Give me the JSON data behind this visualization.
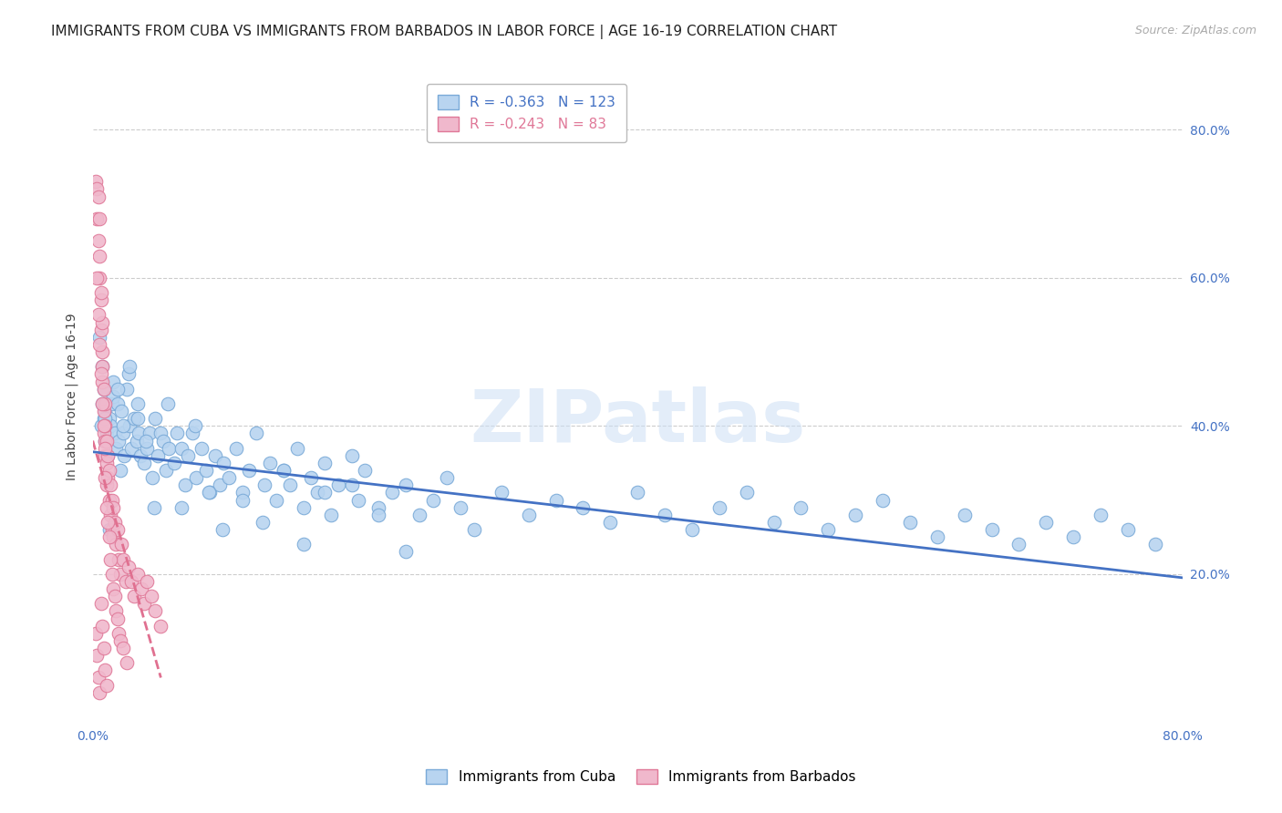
{
  "title": "IMMIGRANTS FROM CUBA VS IMMIGRANTS FROM BARBADOS IN LABOR FORCE | AGE 16-19 CORRELATION CHART",
  "source": "Source: ZipAtlas.com",
  "ylabel": "In Labor Force | Age 16-19",
  "xlim": [
    0.0,
    0.8
  ],
  "ylim": [
    0.0,
    0.88
  ],
  "xticks": [
    0.0,
    0.2,
    0.4,
    0.6,
    0.8
  ],
  "xtick_labels": [
    "0.0%",
    "",
    "",
    "",
    "80.0%"
  ],
  "yticks_right": [
    0.2,
    0.4,
    0.6,
    0.8
  ],
  "ytick_labels_right": [
    "20.0%",
    "40.0%",
    "60.0%",
    "80.0%"
  ],
  "cuba_color": "#b8d4f0",
  "cuba_edge_color": "#7aaad8",
  "barbados_color": "#f0b8cc",
  "barbados_edge_color": "#e07898",
  "cuba_R": -0.363,
  "cuba_N": 123,
  "barbados_R": -0.243,
  "barbados_N": 83,
  "regression_cuba_color": "#4472c4",
  "regression_barbados_color": "#e07090",
  "watermark": "ZIPatlas",
  "grid_color": "#cccccc",
  "background_color": "#ffffff",
  "title_fontsize": 11,
  "tick_color": "#4472c4",
  "cuba_scatter_x": [
    0.006,
    0.007,
    0.008,
    0.008,
    0.009,
    0.009,
    0.01,
    0.01,
    0.011,
    0.012,
    0.013,
    0.014,
    0.015,
    0.015,
    0.016,
    0.017,
    0.018,
    0.019,
    0.02,
    0.021,
    0.022,
    0.023,
    0.025,
    0.026,
    0.027,
    0.028,
    0.03,
    0.032,
    0.033,
    0.034,
    0.035,
    0.038,
    0.04,
    0.042,
    0.044,
    0.046,
    0.048,
    0.05,
    0.052,
    0.054,
    0.056,
    0.06,
    0.062,
    0.065,
    0.068,
    0.07,
    0.073,
    0.076,
    0.08,
    0.083,
    0.086,
    0.09,
    0.093,
    0.096,
    0.1,
    0.105,
    0.11,
    0.115,
    0.12,
    0.126,
    0.13,
    0.135,
    0.14,
    0.145,
    0.15,
    0.155,
    0.16,
    0.165,
    0.17,
    0.175,
    0.18,
    0.19,
    0.195,
    0.2,
    0.21,
    0.22,
    0.23,
    0.24,
    0.25,
    0.26,
    0.27,
    0.28,
    0.3,
    0.32,
    0.34,
    0.36,
    0.38,
    0.4,
    0.42,
    0.44,
    0.46,
    0.48,
    0.5,
    0.52,
    0.54,
    0.56,
    0.58,
    0.6,
    0.62,
    0.64,
    0.66,
    0.68,
    0.7,
    0.72,
    0.74,
    0.76,
    0.78,
    0.005,
    0.007,
    0.009,
    0.012,
    0.018,
    0.022,
    0.027,
    0.033,
    0.039,
    0.045,
    0.055,
    0.065,
    0.075,
    0.085,
    0.095,
    0.11,
    0.125,
    0.14,
    0.155,
    0.17,
    0.19,
    0.21,
    0.23
  ],
  "cuba_scatter_y": [
    0.4,
    0.43,
    0.41,
    0.45,
    0.42,
    0.38,
    0.43,
    0.39,
    0.36,
    0.41,
    0.4,
    0.43,
    0.44,
    0.46,
    0.39,
    0.37,
    0.43,
    0.38,
    0.34,
    0.42,
    0.39,
    0.36,
    0.45,
    0.47,
    0.4,
    0.37,
    0.41,
    0.38,
    0.43,
    0.39,
    0.36,
    0.35,
    0.37,
    0.39,
    0.33,
    0.41,
    0.36,
    0.39,
    0.38,
    0.34,
    0.37,
    0.35,
    0.39,
    0.37,
    0.32,
    0.36,
    0.39,
    0.33,
    0.37,
    0.34,
    0.31,
    0.36,
    0.32,
    0.35,
    0.33,
    0.37,
    0.31,
    0.34,
    0.39,
    0.32,
    0.35,
    0.3,
    0.34,
    0.32,
    0.37,
    0.29,
    0.33,
    0.31,
    0.35,
    0.28,
    0.32,
    0.36,
    0.3,
    0.34,
    0.29,
    0.31,
    0.32,
    0.28,
    0.3,
    0.33,
    0.29,
    0.26,
    0.31,
    0.28,
    0.3,
    0.29,
    0.27,
    0.31,
    0.28,
    0.26,
    0.29,
    0.31,
    0.27,
    0.29,
    0.26,
    0.28,
    0.3,
    0.27,
    0.25,
    0.28,
    0.26,
    0.24,
    0.27,
    0.25,
    0.28,
    0.26,
    0.24,
    0.52,
    0.48,
    0.41,
    0.26,
    0.45,
    0.4,
    0.48,
    0.41,
    0.38,
    0.29,
    0.43,
    0.29,
    0.4,
    0.31,
    0.26,
    0.3,
    0.27,
    0.34,
    0.24,
    0.31,
    0.32,
    0.28,
    0.23
  ],
  "barbados_scatter_x": [
    0.002,
    0.003,
    0.003,
    0.004,
    0.004,
    0.005,
    0.005,
    0.005,
    0.006,
    0.006,
    0.006,
    0.007,
    0.007,
    0.007,
    0.007,
    0.008,
    0.008,
    0.008,
    0.009,
    0.009,
    0.009,
    0.009,
    0.01,
    0.01,
    0.01,
    0.011,
    0.011,
    0.012,
    0.012,
    0.013,
    0.013,
    0.014,
    0.014,
    0.015,
    0.015,
    0.016,
    0.017,
    0.018,
    0.019,
    0.02,
    0.021,
    0.022,
    0.024,
    0.026,
    0.028,
    0.03,
    0.033,
    0.036,
    0.038,
    0.04,
    0.043,
    0.046,
    0.05,
    0.003,
    0.004,
    0.005,
    0.006,
    0.007,
    0.008,
    0.009,
    0.009,
    0.01,
    0.011,
    0.012,
    0.013,
    0.014,
    0.015,
    0.016,
    0.017,
    0.018,
    0.019,
    0.02,
    0.022,
    0.025,
    0.002,
    0.003,
    0.004,
    0.005,
    0.006,
    0.007,
    0.008,
    0.009,
    0.01
  ],
  "barbados_scatter_y": [
    0.73,
    0.68,
    0.72,
    0.65,
    0.71,
    0.68,
    0.63,
    0.6,
    0.57,
    0.53,
    0.58,
    0.5,
    0.54,
    0.46,
    0.48,
    0.42,
    0.45,
    0.39,
    0.43,
    0.38,
    0.36,
    0.4,
    0.38,
    0.35,
    0.32,
    0.36,
    0.33,
    0.34,
    0.3,
    0.28,
    0.32,
    0.3,
    0.26,
    0.29,
    0.25,
    0.27,
    0.24,
    0.26,
    0.22,
    0.2,
    0.24,
    0.22,
    0.19,
    0.21,
    0.19,
    0.17,
    0.2,
    0.18,
    0.16,
    0.19,
    0.17,
    0.15,
    0.13,
    0.6,
    0.55,
    0.51,
    0.47,
    0.43,
    0.4,
    0.37,
    0.33,
    0.29,
    0.27,
    0.25,
    0.22,
    0.2,
    0.18,
    0.17,
    0.15,
    0.14,
    0.12,
    0.11,
    0.1,
    0.08,
    0.12,
    0.09,
    0.06,
    0.04,
    0.16,
    0.13,
    0.1,
    0.07,
    0.05
  ],
  "cuba_line_x": [
    0.0,
    0.8
  ],
  "cuba_line_y": [
    0.365,
    0.195
  ],
  "barbados_line_x": [
    0.0,
    0.05
  ],
  "barbados_line_y": [
    0.38,
    0.06
  ]
}
